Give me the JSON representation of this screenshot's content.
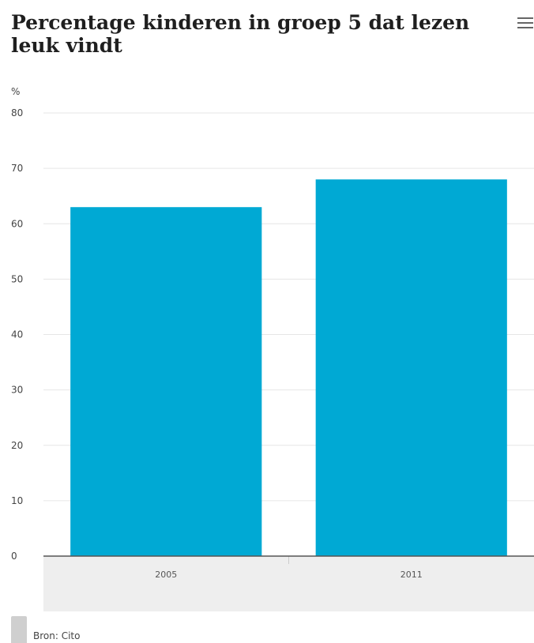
{
  "chart_data": {
    "type": "bar",
    "title": "Percentage kinderen in groep 5 dat lezen leuk vindt",
    "ylabel": "%",
    "categories": [
      "2005",
      "2011"
    ],
    "series": [
      {
        "values": [
          63,
          68
        ]
      }
    ],
    "ylim": [
      0,
      80
    ],
    "yticks": [
      0,
      10,
      20,
      30,
      40,
      50,
      60,
      70,
      80
    ],
    "bar_color": "#00a9d4",
    "grid": true,
    "source": "Bron: Cito"
  },
  "menu_icon": "hamburger-menu-icon"
}
